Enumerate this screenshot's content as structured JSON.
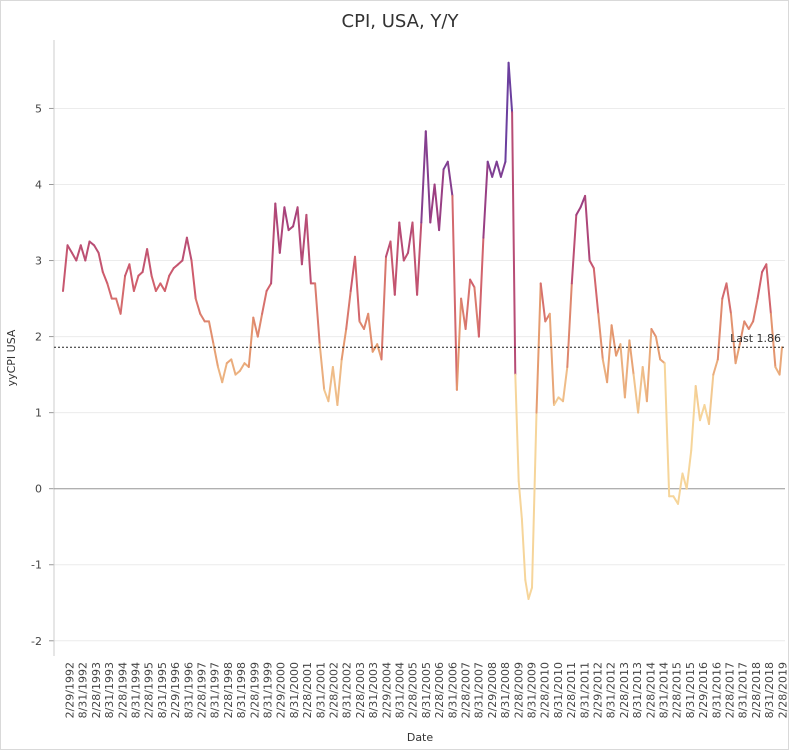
{
  "chart_data": {
    "type": "line",
    "title": "CPI, USA, Y/Y",
    "xlabel": "Date",
    "ylabel": "yyCPI USA",
    "ylim": [
      -2.2,
      5.9
    ],
    "yticks": [
      -2,
      -1,
      0,
      1,
      2,
      3,
      4,
      5
    ],
    "x_tick_labels": [
      "2/29/1992",
      "8/31/1992",
      "2/28/1993",
      "8/31/1993",
      "2/28/1994",
      "8/31/1994",
      "2/28/1995",
      "8/31/1995",
      "2/29/1996",
      "8/31/1996",
      "2/28/1997",
      "8/31/1997",
      "2/28/1998",
      "8/31/1998",
      "2/28/1999",
      "8/31/1999",
      "2/29/2000",
      "8/31/2000",
      "2/28/2001",
      "8/31/2001",
      "2/28/2002",
      "8/31/2002",
      "2/28/2003",
      "8/31/2003",
      "2/29/2004",
      "8/31/2004",
      "2/28/2005",
      "8/31/2005",
      "2/28/2006",
      "8/31/2006",
      "2/28/2007",
      "8/31/2007",
      "2/29/2008",
      "8/31/2008",
      "2/28/2009",
      "8/31/2009",
      "2/28/2010",
      "8/31/2010",
      "2/28/2011",
      "8/31/2011",
      "2/29/2012",
      "8/31/2012",
      "2/28/2013",
      "8/31/2013",
      "2/28/2014",
      "8/31/2014",
      "2/28/2015",
      "8/31/2015",
      "2/29/2016",
      "8/31/2016",
      "2/28/2017",
      "8/31/2017",
      "2/28/2018",
      "8/31/2018",
      "2/28/2019"
    ],
    "series": [
      {
        "points": [
          [
            1992.16,
            2.6
          ],
          [
            1992.33,
            3.2
          ],
          [
            1992.5,
            3.1
          ],
          [
            1992.66,
            3.0
          ],
          [
            1992.83,
            3.2
          ],
          [
            1993.0,
            3.0
          ],
          [
            1993.16,
            3.25
          ],
          [
            1993.33,
            3.2
          ],
          [
            1993.5,
            3.1
          ],
          [
            1993.66,
            2.85
          ],
          [
            1993.83,
            2.7
          ],
          [
            1994.0,
            2.5
          ],
          [
            1994.16,
            2.5
          ],
          [
            1994.33,
            2.3
          ],
          [
            1994.5,
            2.8
          ],
          [
            1994.66,
            2.95
          ],
          [
            1994.83,
            2.6
          ],
          [
            1995.0,
            2.8
          ],
          [
            1995.16,
            2.85
          ],
          [
            1995.33,
            3.15
          ],
          [
            1995.5,
            2.8
          ],
          [
            1995.66,
            2.6
          ],
          [
            1995.83,
            2.7
          ],
          [
            1996.0,
            2.6
          ],
          [
            1996.16,
            2.8
          ],
          [
            1996.33,
            2.9
          ],
          [
            1996.5,
            2.95
          ],
          [
            1996.66,
            3.0
          ],
          [
            1996.83,
            3.3
          ],
          [
            1997.0,
            3.0
          ],
          [
            1997.16,
            2.5
          ],
          [
            1997.33,
            2.3
          ],
          [
            1997.5,
            2.2
          ],
          [
            1997.66,
            2.2
          ],
          [
            1997.83,
            1.9
          ],
          [
            1998.0,
            1.6
          ],
          [
            1998.16,
            1.4
          ],
          [
            1998.33,
            1.65
          ],
          [
            1998.5,
            1.7
          ],
          [
            1998.66,
            1.5
          ],
          [
            1998.83,
            1.55
          ],
          [
            1999.0,
            1.65
          ],
          [
            1999.16,
            1.6
          ],
          [
            1999.33,
            2.25
          ],
          [
            1999.5,
            2.0
          ],
          [
            1999.66,
            2.3
          ],
          [
            1999.83,
            2.6
          ],
          [
            2000.0,
            2.7
          ],
          [
            2000.16,
            3.75
          ],
          [
            2000.33,
            3.1
          ],
          [
            2000.5,
            3.7
          ],
          [
            2000.66,
            3.4
          ],
          [
            2000.83,
            3.45
          ],
          [
            2001.0,
            3.7
          ],
          [
            2001.16,
            2.95
          ],
          [
            2001.33,
            3.6
          ],
          [
            2001.5,
            2.7
          ],
          [
            2001.66,
            2.7
          ],
          [
            2001.83,
            1.9
          ],
          [
            2002.0,
            1.3
          ],
          [
            2002.16,
            1.15
          ],
          [
            2002.33,
            1.6
          ],
          [
            2002.5,
            1.1
          ],
          [
            2002.66,
            1.7
          ],
          [
            2002.83,
            2.1
          ],
          [
            2003.0,
            2.6
          ],
          [
            2003.16,
            3.05
          ],
          [
            2003.33,
            2.2
          ],
          [
            2003.5,
            2.1
          ],
          [
            2003.66,
            2.3
          ],
          [
            2003.83,
            1.8
          ],
          [
            2004.0,
            1.9
          ],
          [
            2004.16,
            1.7
          ],
          [
            2004.33,
            3.05
          ],
          [
            2004.5,
            3.25
          ],
          [
            2004.66,
            2.55
          ],
          [
            2004.83,
            3.5
          ],
          [
            2005.0,
            3.0
          ],
          [
            2005.16,
            3.1
          ],
          [
            2005.33,
            3.5
          ],
          [
            2005.5,
            2.55
          ],
          [
            2005.66,
            3.5
          ],
          [
            2005.83,
            4.7
          ],
          [
            2006.0,
            3.5
          ],
          [
            2006.16,
            4.0
          ],
          [
            2006.33,
            3.4
          ],
          [
            2006.5,
            4.2
          ],
          [
            2006.66,
            4.3
          ],
          [
            2006.83,
            3.85
          ],
          [
            2007.0,
            1.3
          ],
          [
            2007.16,
            2.5
          ],
          [
            2007.33,
            2.1
          ],
          [
            2007.5,
            2.75
          ],
          [
            2007.66,
            2.65
          ],
          [
            2007.83,
            2.0
          ],
          [
            2008.0,
            3.3
          ],
          [
            2008.16,
            4.3
          ],
          [
            2008.33,
            4.1
          ],
          [
            2008.5,
            4.3
          ],
          [
            2008.66,
            4.1
          ],
          [
            2008.83,
            4.3
          ],
          [
            2008.95,
            5.6
          ],
          [
            2009.08,
            4.95
          ],
          [
            2009.2,
            1.5
          ],
          [
            2009.33,
            0.1
          ],
          [
            2009.45,
            -0.4
          ],
          [
            2009.58,
            -1.2
          ],
          [
            2009.7,
            -1.45
          ],
          [
            2009.83,
            -1.3
          ],
          [
            2010.0,
            1.0
          ],
          [
            2010.16,
            2.7
          ],
          [
            2010.33,
            2.2
          ],
          [
            2010.5,
            2.3
          ],
          [
            2010.66,
            1.1
          ],
          [
            2010.83,
            1.2
          ],
          [
            2011.0,
            1.15
          ],
          [
            2011.16,
            1.6
          ],
          [
            2011.33,
            2.7
          ],
          [
            2011.5,
            3.6
          ],
          [
            2011.66,
            3.7
          ],
          [
            2011.83,
            3.85
          ],
          [
            2012.0,
            3.0
          ],
          [
            2012.16,
            2.9
          ],
          [
            2012.33,
            2.3
          ],
          [
            2012.5,
            1.7
          ],
          [
            2012.66,
            1.4
          ],
          [
            2012.83,
            2.15
          ],
          [
            2013.0,
            1.75
          ],
          [
            2013.16,
            1.9
          ],
          [
            2013.33,
            1.2
          ],
          [
            2013.5,
            1.95
          ],
          [
            2013.66,
            1.5
          ],
          [
            2013.83,
            1.0
          ],
          [
            2014.0,
            1.6
          ],
          [
            2014.16,
            1.15
          ],
          [
            2014.33,
            2.1
          ],
          [
            2014.5,
            2.0
          ],
          [
            2014.66,
            1.7
          ],
          [
            2014.83,
            1.65
          ],
          [
            2015.0,
            -0.1
          ],
          [
            2015.16,
            -0.1
          ],
          [
            2015.33,
            -0.2
          ],
          [
            2015.5,
            0.2
          ],
          [
            2015.66,
            0.0
          ],
          [
            2015.83,
            0.5
          ],
          [
            2016.0,
            1.35
          ],
          [
            2016.16,
            0.9
          ],
          [
            2016.33,
            1.1
          ],
          [
            2016.5,
            0.85
          ],
          [
            2016.66,
            1.5
          ],
          [
            2016.83,
            1.7
          ],
          [
            2017.0,
            2.5
          ],
          [
            2017.16,
            2.7
          ],
          [
            2017.33,
            2.3
          ],
          [
            2017.5,
            1.65
          ],
          [
            2017.66,
            1.9
          ],
          [
            2017.83,
            2.2
          ],
          [
            2018.0,
            2.1
          ],
          [
            2018.16,
            2.2
          ],
          [
            2018.33,
            2.5
          ],
          [
            2018.5,
            2.85
          ],
          [
            2018.66,
            2.95
          ],
          [
            2018.83,
            2.3
          ],
          [
            2019.0,
            1.6
          ],
          [
            2019.16,
            1.5
          ],
          [
            2019.25,
            1.86
          ]
        ]
      }
    ],
    "reference_line": {
      "value": 1.86,
      "label": "Last 1.86",
      "style": "dashed"
    },
    "zero_line": 0,
    "grid": true,
    "legend": "none",
    "colormap": [
      "#f6d59a",
      "#e59a6f",
      "#cf5c6c",
      "#a33f7d",
      "#6b3f9e"
    ]
  }
}
